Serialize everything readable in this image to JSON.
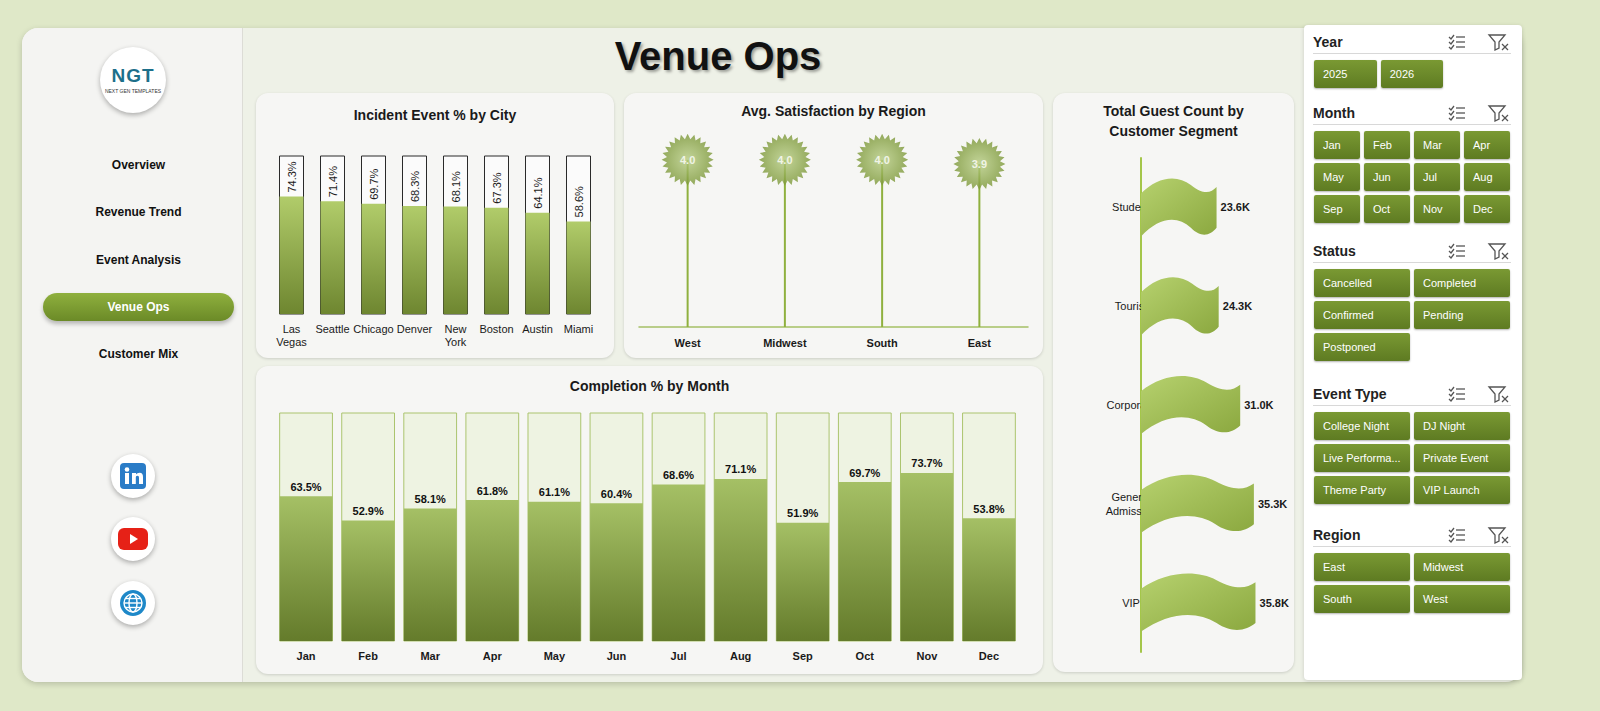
{
  "title": "Venue Ops",
  "logo": {
    "text": "NGT",
    "subtitle": "NEXT GEN TEMPLATES"
  },
  "nav": {
    "items": [
      "Overview",
      "Revenue Trend",
      "Event Analysis",
      "Venue Ops",
      "Customer Mix"
    ],
    "active": "Venue Ops"
  },
  "slicers": [
    {
      "title": "Year",
      "items": [
        "2025",
        "2026"
      ]
    },
    {
      "title": "Month",
      "items": [
        "Jan",
        "Feb",
        "Mar",
        "Apr",
        "May",
        "Jun",
        "Jul",
        "Aug",
        "Sep",
        "Oct",
        "Nov",
        "Dec"
      ]
    },
    {
      "title": "Status",
      "items": [
        "Cancelled",
        "Completed",
        "Confirmed",
        "Pending",
        "Postponed"
      ]
    },
    {
      "title": "Event Type",
      "items": [
        "College Night",
        "DJ Night",
        "Live Performa...",
        "Private Event",
        "Theme Party",
        "VIP Launch"
      ]
    },
    {
      "title": "Region",
      "items": [
        "East",
        "Midwest",
        "South",
        "West"
      ]
    }
  ],
  "chart_data": [
    {
      "type": "bar",
      "title": "Incident Event % by City",
      "categories": [
        "Las Vegas",
        "Seattle",
        "Chicago",
        "Denver",
        "New York",
        "Boston",
        "Austin",
        "Miami"
      ],
      "values": [
        74.3,
        71.4,
        69.7,
        68.3,
        68.1,
        67.3,
        64.1,
        58.6
      ],
      "value_labels": [
        "74.3%",
        "71.4%",
        "69.7%",
        "68.3%",
        "68.1%",
        "67.3%",
        "64.1%",
        "58.6%"
      ],
      "color": "#9dbf45",
      "ylim": [
        0,
        100
      ],
      "data_labels": true,
      "tick_labels": "x"
    },
    {
      "type": "lollipop",
      "title": "Avg. Satisfaction by Region",
      "categories": [
        "West",
        "Midwest",
        "South",
        "East"
      ],
      "values": [
        4.0,
        4.0,
        4.0,
        3.9
      ],
      "value_labels": [
        "4.0",
        "4.0",
        "4.0",
        "3.9"
      ],
      "color": "#8fb03e",
      "marker": "starburst",
      "ylim": [
        0,
        5
      ],
      "data_labels": true,
      "tick_labels": "x"
    },
    {
      "type": "bar",
      "orientation": "horizontal",
      "title": "Total Guest Count by Customer Segment",
      "categories": [
        "Student",
        "Tourist",
        "Corporate",
        "General Admission",
        "VIP"
      ],
      "values": [
        23600,
        24300,
        31000,
        35300,
        35800
      ],
      "value_labels": [
        "23.6K",
        "24.3K",
        "31.0K",
        "35.3K",
        "35.8K"
      ],
      "color": "#a4c64a",
      "marker": "flag",
      "xlim": [
        0,
        40000
      ],
      "data_labels": true,
      "tick_labels": "y"
    },
    {
      "type": "bar",
      "title": "Completion % by Month",
      "categories": [
        "Jan",
        "Feb",
        "Mar",
        "Apr",
        "May",
        "Jun",
        "Jul",
        "Aug",
        "Sep",
        "Oct",
        "Nov",
        "Dec"
      ],
      "values": [
        63.5,
        52.9,
        58.1,
        61.8,
        61.1,
        60.4,
        68.6,
        71.1,
        51.9,
        69.7,
        73.7,
        53.8
      ],
      "value_labels": [
        "63.5%",
        "52.9%",
        "58.1%",
        "61.8%",
        "61.1%",
        "60.4%",
        "68.6%",
        "71.1%",
        "51.9%",
        "69.7%",
        "73.7%",
        "53.8%"
      ],
      "color": "#8fb03e",
      "ylim": [
        0,
        100
      ],
      "data_labels": true,
      "tick_labels": "x"
    }
  ]
}
